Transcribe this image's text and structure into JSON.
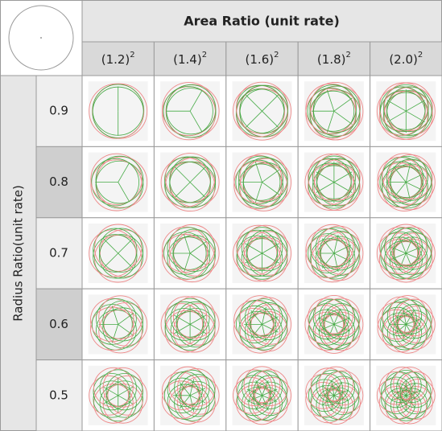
{
  "table": {
    "header": "Area Ratio (unit rate)",
    "columns": [
      {
        "base": "(1.2)",
        "exponent": "2"
      },
      {
        "base": "(1.4)",
        "exponent": "2"
      },
      {
        "base": "(1.6)",
        "exponent": "2"
      },
      {
        "base": "(1.8)",
        "exponent": "2"
      },
      {
        "base": "(2.0)",
        "exponent": "2"
      }
    ],
    "row_header": "Radius Ratio(unit rate)",
    "rows": [
      "0.9",
      "0.8",
      "0.7",
      "0.6",
      "0.5"
    ]
  }
}
